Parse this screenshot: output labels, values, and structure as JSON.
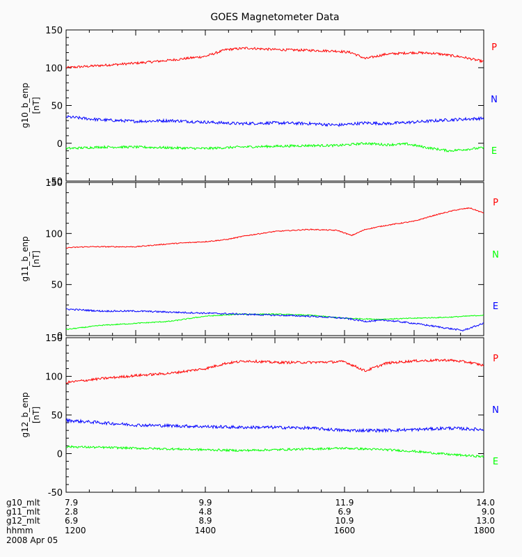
{
  "title": "GOES Magnetometer Data",
  "chart_data": [
    {
      "type": "line",
      "ylabel": "g10_b_enp",
      "yunit": "[nT]",
      "ylim": [
        -50,
        150
      ],
      "yticks": [
        "150",
        "100",
        "50",
        "0",
        "-50"
      ],
      "xlim": [
        12,
        18
      ],
      "series": [
        {
          "name": "P",
          "color": "#ff0000",
          "noise": 1.6,
          "x": [
            12.0,
            12.5,
            13.0,
            13.5,
            14.0,
            14.3,
            14.6,
            15.0,
            15.5,
            15.9,
            16.1,
            16.3,
            16.6,
            17.0,
            17.3,
            17.7,
            18.0
          ],
          "y": [
            100,
            103,
            106,
            110,
            115,
            124,
            126,
            124,
            123,
            122,
            120,
            112,
            118,
            120,
            119,
            114,
            108
          ]
        },
        {
          "name": "N",
          "color": "#0000ff",
          "noise": 2.0,
          "x": [
            12.0,
            12.5,
            13.0,
            13.5,
            14.0,
            14.5,
            15.0,
            15.5,
            15.9,
            16.3,
            16.6,
            17.0,
            17.5,
            18.0
          ],
          "y": [
            35,
            31,
            29,
            30,
            28,
            26,
            27,
            26,
            24,
            27,
            26,
            28,
            31,
            33
          ]
        },
        {
          "name": "E",
          "color": "#00ff00",
          "noise": 1.6,
          "x": [
            12.0,
            12.5,
            13.0,
            13.5,
            14.0,
            14.5,
            15.0,
            15.5,
            15.9,
            16.3,
            16.6,
            16.9,
            17.2,
            17.5,
            18.0
          ],
          "y": [
            -7,
            -5,
            -5,
            -6,
            -7,
            -5,
            -4,
            -3,
            -3,
            0,
            -2,
            -1,
            -6,
            -10,
            -6
          ]
        }
      ]
    },
    {
      "type": "line",
      "ylabel": "g11_b_enp",
      "yunit": "[nT]",
      "ylim": [
        0,
        150
      ],
      "yticks": [
        "150",
        "100",
        "50",
        "0"
      ],
      "xlim": [
        12,
        18
      ],
      "series": [
        {
          "name": "P",
          "color": "#ff0000",
          "noise": 0.5,
          "x": [
            12.0,
            12.3,
            12.6,
            13.0,
            13.5,
            14.0,
            14.3,
            14.6,
            15.0,
            15.5,
            15.9,
            16.1,
            16.3,
            16.6,
            17.0,
            17.3,
            17.6,
            17.8,
            18.0
          ],
          "y": [
            86,
            87,
            87,
            87,
            90,
            92,
            94,
            98,
            102,
            104,
            103,
            98,
            104,
            108,
            112,
            118,
            123,
            125,
            120
          ]
        },
        {
          "name": "N",
          "color": "#00ff00",
          "noise": 0.5,
          "x": [
            12.0,
            12.5,
            13.0,
            13.5,
            14.0,
            14.5,
            15.0,
            15.5,
            16.0,
            16.5,
            17.0,
            17.5,
            18.0
          ],
          "y": [
            6,
            10,
            12,
            14,
            19,
            21,
            21,
            20,
            17,
            16,
            17,
            18,
            20
          ]
        },
        {
          "name": "E",
          "color": "#0000ff",
          "noise": 0.8,
          "x": [
            12.0,
            12.5,
            13.0,
            13.5,
            14.0,
            14.5,
            15.0,
            15.5,
            16.0,
            16.3,
            16.6,
            17.0,
            17.4,
            17.7,
            18.0
          ],
          "y": [
            26,
            24,
            24,
            23,
            22,
            21,
            20,
            19,
            17,
            14,
            15,
            12,
            8,
            5,
            12
          ]
        }
      ]
    },
    {
      "type": "line",
      "ylabel": "g12_b_enp",
      "yunit": "[nT]",
      "ylim": [
        -50,
        150
      ],
      "yticks": [
        "150",
        "100",
        "50",
        "0",
        "-50"
      ],
      "xlim": [
        12,
        18
      ],
      "series": [
        {
          "name": "P",
          "color": "#ff0000",
          "noise": 1.6,
          "x": [
            12.0,
            12.5,
            13.0,
            13.5,
            14.0,
            14.3,
            14.6,
            15.0,
            15.5,
            16.0,
            16.3,
            16.6,
            17.0,
            17.5,
            17.8,
            18.0
          ],
          "y": [
            92,
            97,
            101,
            104,
            110,
            117,
            120,
            118,
            118,
            119,
            107,
            117,
            120,
            121,
            118,
            114
          ]
        },
        {
          "name": "N",
          "color": "#0000ff",
          "noise": 2.0,
          "x": [
            12.0,
            12.5,
            13.0,
            13.5,
            14.0,
            14.5,
            15.0,
            15.5,
            16.0,
            16.5,
            17.0,
            17.5,
            18.0
          ],
          "y": [
            43,
            40,
            37,
            36,
            35,
            34,
            34,
            33,
            30,
            30,
            31,
            33,
            31
          ]
        },
        {
          "name": "E",
          "color": "#00ff00",
          "noise": 1.4,
          "x": [
            12.0,
            12.5,
            13.0,
            13.5,
            14.0,
            14.5,
            15.0,
            15.5,
            16.0,
            16.3,
            16.6,
            17.0,
            17.5,
            18.0
          ],
          "y": [
            9,
            8,
            7,
            6,
            5,
            4,
            5,
            6,
            7,
            6,
            5,
            3,
            -1,
            -4
          ]
        }
      ]
    }
  ],
  "xaxis": {
    "rows": [
      {
        "label": "g10_mlt",
        "values": [
          "7.9",
          "9.9",
          "11.9",
          "14.0"
        ]
      },
      {
        "label": "g11_mlt",
        "values": [
          "2.8",
          "4.8",
          "6.9",
          "9.0"
        ]
      },
      {
        "label": "g12_mlt",
        "values": [
          "6.9",
          "8.9",
          "10.9",
          "13.0"
        ]
      },
      {
        "label": "hhmm",
        "values": [
          "1200",
          "1400",
          "1600",
          "1800"
        ]
      }
    ],
    "date": "2008 Apr 05"
  }
}
